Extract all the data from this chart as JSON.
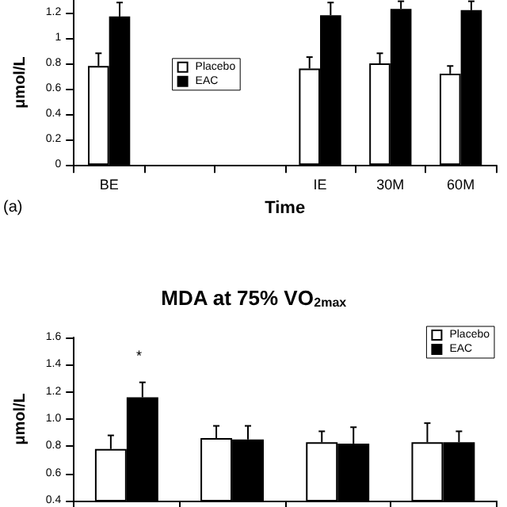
{
  "chart_data": [
    {
      "type": "bar",
      "xlabel": "Time",
      "ylabel": "μmol/L",
      "annotations": [
        "(a)"
      ],
      "categories": [
        "BE",
        null,
        null,
        "IE",
        "30M",
        "60M"
      ],
      "series": [
        {
          "name": "Placebo",
          "color": "#ffffff",
          "values": [
            0.78,
            null,
            null,
            0.76,
            0.8,
            0.72
          ],
          "errors": [
            0.1,
            null,
            null,
            0.09,
            0.08,
            0.06
          ]
        },
        {
          "name": "EAC",
          "color": "#000000",
          "values": [
            1.17,
            null,
            null,
            1.18,
            1.23,
            1.22
          ],
          "errors": [
            0.11,
            null,
            null,
            0.1,
            0.06,
            0.07
          ]
        }
      ],
      "ylim": [
        0,
        1.3
      ],
      "yticks": [
        0,
        0.2,
        0.4,
        0.6,
        0.8,
        1,
        1.2
      ],
      "legend": "left",
      "grid": false
    },
    {
      "type": "bar",
      "title": "MDA at 75% VO$_{2max}$",
      "ylabel": "μmol/L",
      "annotations": [
        "*"
      ],
      "categories": [
        null,
        null,
        null,
        null
      ],
      "series": [
        {
          "name": "Placebo",
          "color": "#ffffff",
          "values": [
            0.78,
            0.86,
            0.83,
            0.83
          ],
          "errors": [
            0.1,
            0.09,
            0.08,
            0.14
          ]
        },
        {
          "name": "EAC",
          "color": "#000000",
          "values": [
            1.16,
            0.85,
            0.82,
            0.83
          ],
          "errors": [
            0.11,
            0.1,
            0.12,
            0.08
          ]
        }
      ],
      "ylim": [
        0.4,
        1.6
      ],
      "yticks": [
        {
          "value": 0.4,
          "label": "0.4"
        },
        {
          "value": 0.6,
          "label": "0.6"
        },
        {
          "value": 0.8,
          "label": "0.8"
        },
        {
          "value": 1,
          "label": "1.0"
        },
        {
          "value": 1.2,
          "label": "1.2"
        },
        {
          "value": 1.4,
          "label": "1.4"
        },
        {
          "value": 1.6,
          "label": "1.6"
        }
      ],
      "legend": "top right",
      "grid": false,
      "tick_labels": "y"
    }
  ]
}
